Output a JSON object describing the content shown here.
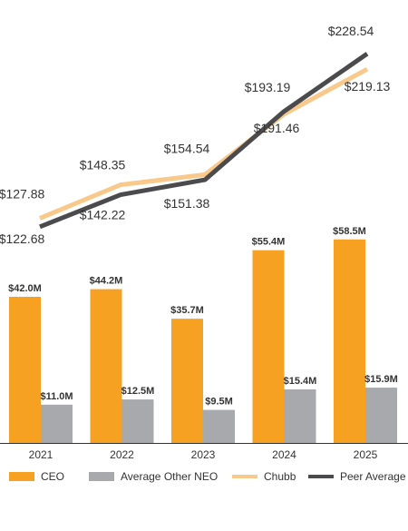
{
  "chart_data": [
    {
      "type": "line",
      "categories": [
        "2021",
        "2022",
        "2023",
        "2024",
        "2025"
      ],
      "series": [
        {
          "name": "Chubb",
          "values": [
            127.88,
            148.35,
            154.54,
            191.46,
            219.13
          ],
          "labels": [
            "$127.88",
            "$148.35",
            "$154.54",
            "$191.46",
            "$219.13"
          ],
          "color": "#F9C98B"
        },
        {
          "name": "Peer Average",
          "values": [
            122.68,
            142.22,
            151.38,
            193.19,
            228.54
          ],
          "labels": [
            "$122.68",
            "$142.22",
            "$151.38",
            "$193.19",
            "$228.54"
          ],
          "color": "#4B4B4D"
        }
      ]
    },
    {
      "type": "bar",
      "categories": [
        "2021",
        "2022",
        "2023",
        "2024",
        "2025"
      ],
      "ylim": [
        0,
        60
      ],
      "series": [
        {
          "name": "CEO",
          "values": [
            42.0,
            44.2,
            35.7,
            55.4,
            58.5
          ],
          "labels": [
            "$42.0M",
            "$44.2M",
            "$35.7M",
            "$55.4M",
            "$58.5M"
          ],
          "color": "#F6A122"
        },
        {
          "name": "Average Other NEO",
          "values": [
            11.0,
            12.5,
            9.5,
            15.4,
            15.9
          ],
          "labels": [
            "$11.0M",
            "$12.5M",
            "$9.5M",
            "$15.4M",
            "$15.9M"
          ],
          "color": "#A7A9AC"
        }
      ]
    }
  ],
  "legend": [
    {
      "label": "CEO",
      "kind": "box",
      "color": "#F6A122"
    },
    {
      "label": "Average Other NEO",
      "kind": "box",
      "color": "#A7A9AC"
    },
    {
      "label": "Chubb",
      "kind": "line",
      "color": "#F9C98B"
    },
    {
      "label": "Peer Average",
      "kind": "line",
      "color": "#4B4B4D"
    }
  ]
}
